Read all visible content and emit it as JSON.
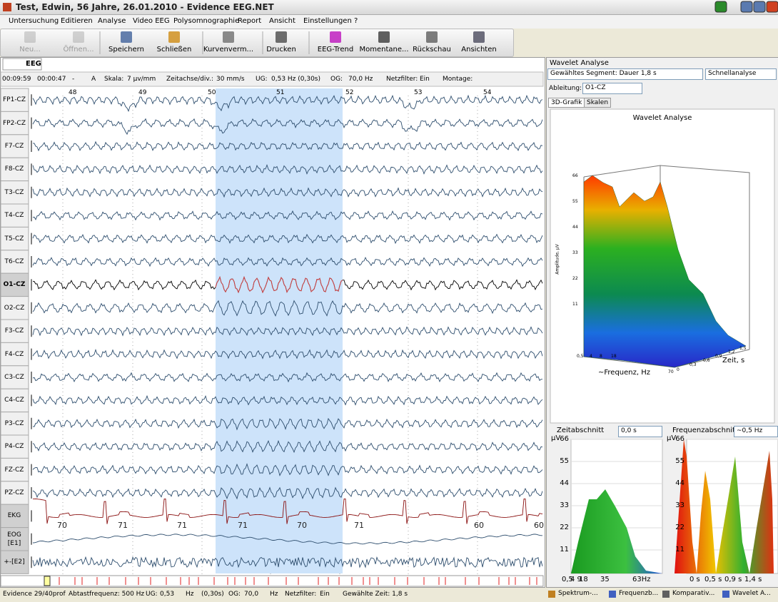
{
  "window": {
    "title": "Test, Edwin, 56 Jahre, 26.01.2010 - Evidence EEG.NET"
  },
  "menu": [
    "Untersuchung",
    "Editieren",
    "Analyse",
    "Video EEG",
    "Polysomnographie",
    "Report",
    "Ansicht",
    "Einstellungen",
    "?"
  ],
  "toolbar": [
    "Neu...",
    "Öffnen...",
    "Speichern",
    "Schließen",
    "Kurvenverm...",
    "Drucken",
    "EEG-Trend",
    "Momentane...",
    "Rückschau",
    "Ansichten"
  ],
  "eeg": {
    "tab": "EEG",
    "controls": [
      "00:09:59",
      "00:00:47",
      "-",
      "A",
      "Skala:",
      "7 µv/mm",
      "Zeitachse/div.:",
      "30 mm/s",
      "UG:",
      "0,53 Hz (0,30s)",
      "OG:",
      "70,0 Hz",
      "Netzfilter:",
      "Ein",
      "Montage:"
    ],
    "seconds": [
      "48",
      "49",
      "50",
      "51",
      "52",
      "53",
      "54"
    ],
    "channels": [
      "FP1-CZ",
      "FP2-CZ",
      "F7-CZ",
      "F8-CZ",
      "T3-CZ",
      "T4-CZ",
      "T5-CZ",
      "T6-CZ",
      "O1-CZ",
      "O2-CZ",
      "F3-CZ",
      "F4-CZ",
      "C3-CZ",
      "C4-CZ",
      "P3-CZ",
      "P4-CZ",
      "FZ-CZ",
      "PZ-CZ",
      "EKG",
      "EOG [E1]",
      "+-[E2]"
    ],
    "heart_rates": [
      "70",
      "71",
      "71",
      "71",
      "70",
      "71",
      "60",
      "60"
    ]
  },
  "status": [
    "Evidence 29/40prof",
    "Abtastfrequenz: 500 Hz",
    "UG:",
    "0,53",
    "Hz",
    "(0,30s)",
    "OG:",
    "70,0",
    "Hz",
    "Netzfilter:",
    "Ein",
    "Gewählte Zeit: 1,8 s"
  ],
  "wavelet": {
    "title": "Wavelet Analyse",
    "segment": "Gewähltes Segment: Dauer 1,8 s",
    "mode": "Schnellanalyse",
    "lead_label": "Ableitung:",
    "lead": "O1-CZ",
    "tabs": [
      "3D-Grafik",
      "Skalen"
    ],
    "chart_title": "Wavelet Analyse",
    "z_label": "Amplitude, µV",
    "z_ticks": [
      "66",
      "55",
      "44",
      "33",
      "22",
      "11"
    ],
    "freq_label": "~Frequenz, Hz",
    "freq_ticks": [
      "0,5",
      "4",
      "8",
      "18",
      "70"
    ],
    "time_label": "Zeit, s",
    "time_ticks": [
      "0",
      "0,3",
      "0,6",
      "0,9",
      "1,2",
      "1,5"
    ],
    "time_section": {
      "label": "Zeitabschnitt",
      "select": "0,0 s",
      "unit": "µV",
      "yticks": [
        "66",
        "55",
        "44",
        "33",
        "22",
        "11"
      ],
      "xticks": [
        "0,5",
        "4 9",
        "18",
        "35",
        "63Hz"
      ]
    },
    "freq_section": {
      "label": "Frequenzabschnitt",
      "select": "~0,5 Hz",
      "unit": "µV",
      "yticks": [
        "66",
        "55",
        "44",
        "33",
        "22",
        "11"
      ],
      "xticks": [
        "0 s",
        "0,5 s",
        "0,9 s",
        "1,4 s"
      ]
    }
  },
  "bottom_tabs": [
    "Spektrum-...",
    "Frequenzb...",
    "Komparativ...",
    "Wavelet A..."
  ]
}
